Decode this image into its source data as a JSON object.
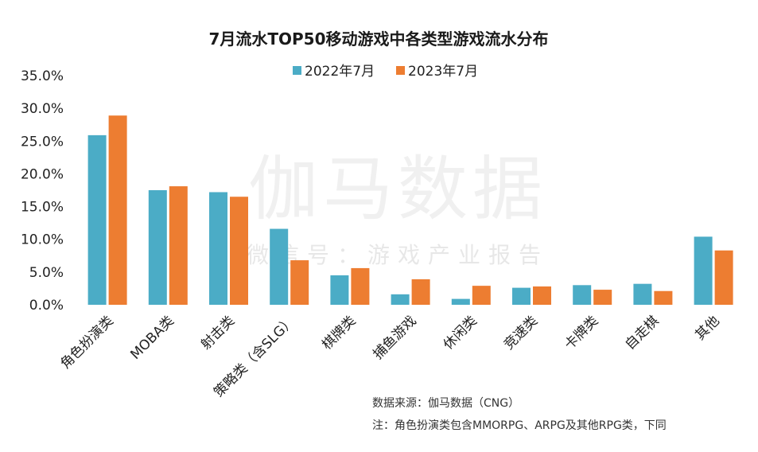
{
  "chart_data": {
    "type": "bar",
    "title": "7月流水TOP50移动游戏中各类型游戏流水分布",
    "categories": [
      "角色扮演类",
      "MOBA类",
      "射击类",
      "策略类（含SLG）",
      "棋牌类",
      "捕鱼游戏",
      "休闲类",
      "竞速类",
      "卡牌类",
      "自走棋",
      "其他"
    ],
    "series": [
      {
        "name": "2022年7月",
        "color": "#4bacc6",
        "values": [
          25.9,
          17.5,
          17.2,
          11.6,
          4.5,
          1.6,
          0.9,
          2.6,
          3.0,
          3.2,
          10.4
        ]
      },
      {
        "name": "2023年7月",
        "color": "#ed7d31",
        "values": [
          28.9,
          18.1,
          16.5,
          6.8,
          5.6,
          3.9,
          2.9,
          2.8,
          2.3,
          2.1,
          8.3
        ]
      }
    ],
    "ylim": [
      0,
      35
    ],
    "yticks": [
      "0.0%",
      "5.0%",
      "10.0%",
      "15.0%",
      "20.0%",
      "25.0%",
      "30.0%",
      "35.0%"
    ],
    "legend_position": "top-center",
    "grid": false
  },
  "watermark": {
    "main": "伽马数据",
    "sub": "微信号：游戏产业报告"
  },
  "source": "数据来源：伽马数据（CNG）",
  "footnote": "注：角色扮演类包含MMORPG、ARPG及其他RPG类，下同"
}
